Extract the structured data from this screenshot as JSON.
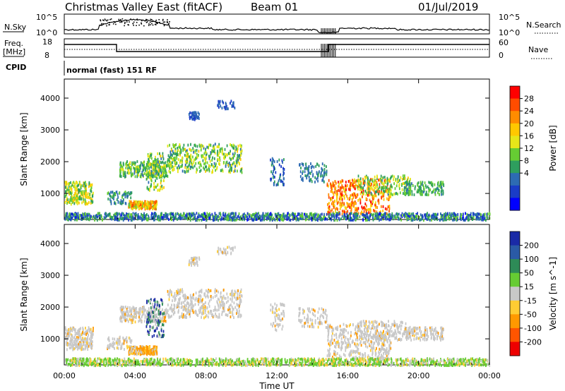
{
  "header": {
    "title": "Christmas Valley East (fitACF)",
    "beam": "Beam 01",
    "date": "01/Jul/2019"
  },
  "panels": {
    "nsky_label": "N.Sky",
    "nsearch_label": "N.Search",
    "nsky_ticks": [
      "10^5",
      "10^0"
    ],
    "nsearch_ticks": [
      "10^5",
      "10^0"
    ],
    "freq_label": "Freq.",
    "freq_unit": "[MHz]",
    "freq_ticks": [
      "18",
      "8"
    ],
    "nave_label": "Nave",
    "nave_ticks": [
      "60",
      "0"
    ],
    "cpid_label": "CPID",
    "cpid_text": "normal (fast) 151 RF"
  },
  "chart_data": [
    {
      "type": "heatmap",
      "name": "power",
      "xlabel": "Time UT",
      "ylabel": "Slant Range [km]",
      "xlim": [
        0,
        24
      ],
      "ylim": [
        180,
        4600
      ],
      "yticks": [
        1000,
        2000,
        3000,
        4000
      ],
      "xticks": [
        "00:00",
        "04:00",
        "08:00",
        "12:00",
        "16:00",
        "20:00",
        "00:00"
      ],
      "colorbar": {
        "label": "Power [dB]",
        "ticks": [
          "28",
          "24",
          "20",
          "16",
          "12",
          "8",
          "4"
        ],
        "colors": [
          "#ff0000",
          "#ff4c00",
          "#ff8c00",
          "#ffc800",
          "#e6e619",
          "#66cc33",
          "#2e9e5e",
          "#2d6bb3",
          "#1a3cc7",
          "#0000ff"
        ]
      }
    },
    {
      "type": "heatmap",
      "name": "velocity",
      "xlabel": "Time UT",
      "ylabel": "Slant Range [km]",
      "xlim": [
        0,
        24
      ],
      "ylim": [
        180,
        4600
      ],
      "yticks": [
        1000,
        2000,
        3000,
        4000
      ],
      "xticks": [
        "00:00",
        "04:00",
        "08:00",
        "12:00",
        "16:00",
        "20:00",
        "00:00"
      ],
      "colorbar": {
        "label": "Velocity [m s^-1]",
        "ticks": [
          "200",
          "100",
          "50",
          "15",
          "-15",
          "-50",
          "-100",
          "-200"
        ],
        "colors": [
          "#1a2aa6",
          "#2a5aa6",
          "#2e8b57",
          "#66cc33",
          "#c8c8c8",
          "#ffcc33",
          "#ff9900",
          "#ff5500",
          "#ee0000"
        ]
      }
    }
  ]
}
